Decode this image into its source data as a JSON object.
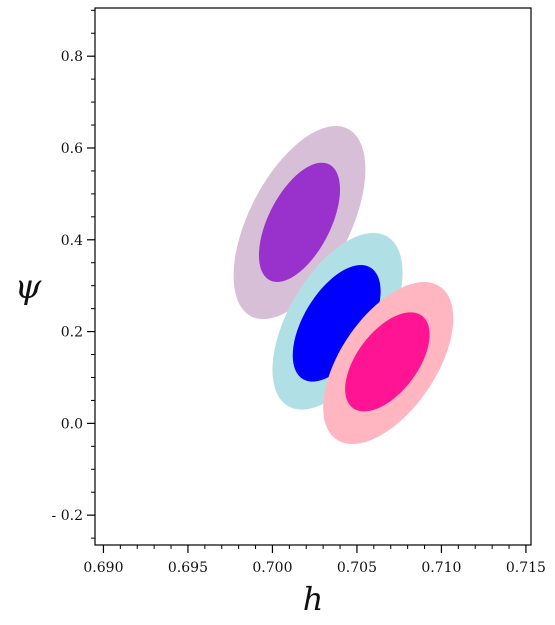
{
  "chart_data": {
    "type": "scatter",
    "title": "",
    "xlabel": "h",
    "ylabel": "ψ",
    "xlim": [
      0.6895,
      0.7153
    ],
    "ylim": [
      -0.265,
      0.905
    ],
    "x_ticks": [
      0.69,
      0.695,
      0.7,
      0.705,
      0.71,
      0.715
    ],
    "x_tick_labels": [
      "0.690",
      "0.695",
      "0.700",
      "0.705",
      "0.710",
      "0.715"
    ],
    "y_ticks": [
      -0.2,
      0.0,
      0.2,
      0.4,
      0.6,
      0.8
    ],
    "y_tick_labels": [
      "- 0.2",
      "0.0",
      "0.2",
      "0.4",
      "0.6",
      "0.8"
    ],
    "grid": false,
    "legend": "none",
    "series": [
      {
        "color_outer": "#d8bfd8",
        "color_inner": "#9932cc",
        "regions": [
          {
            "level": "outer",
            "h_range": [
              0.6977,
              0.7055
            ],
            "psi_range": [
              0.227,
              0.648
            ]
          },
          {
            "level": "inner",
            "h_range": [
              0.6992,
              0.704
            ],
            "psi_range": [
              0.308,
              0.568
            ]
          }
        ]
      },
      {
        "color_outer": "#b0e0e6",
        "color_inner": "#0000ff",
        "regions": [
          {
            "level": "outer",
            "h_range": [
              0.7,
              0.7077
            ],
            "psi_range": [
              0.03,
              0.415
            ]
          },
          {
            "level": "inner",
            "h_range": [
              0.7012,
              0.7064
            ],
            "psi_range": [
              0.091,
              0.345
            ]
          }
        ]
      },
      {
        "color_outer": "#ffb6c1",
        "color_inner": "#ff1493",
        "regions": [
          {
            "level": "outer",
            "h_range": [
              0.703,
              0.7107
            ],
            "psi_range": [
              -0.045,
              0.308
            ]
          },
          {
            "level": "inner",
            "h_range": [
              0.7043,
              0.7093
            ],
            "psi_range": [
              0.026,
              0.242
            ]
          }
        ]
      }
    ]
  }
}
